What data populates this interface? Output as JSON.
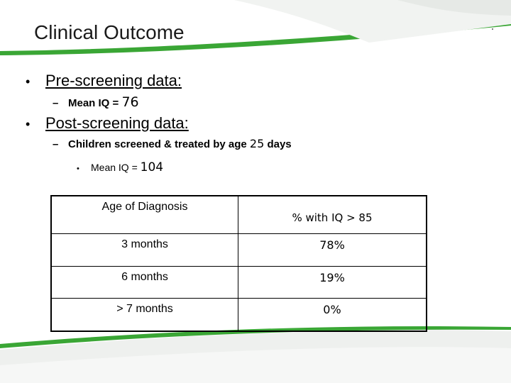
{
  "slide": {
    "title": "Clinical Outcome",
    "accent_color": "#3aa635",
    "bullets": [
      {
        "marker": "•",
        "label": "Pre-screening data:",
        "sub": [
          {
            "marker": "–",
            "prefix": "Mean IQ = ",
            "value": "76"
          }
        ]
      },
      {
        "marker": "•",
        "label": "Post-screening data:",
        "sub": [
          {
            "marker": "–",
            "prefix": "Children screened & treated by age ",
            "value": "25",
            "suffix": " days",
            "sub": [
              {
                "marker": "•",
                "prefix": "Mean IQ = ",
                "value": "104"
              }
            ]
          }
        ]
      }
    ],
    "table": {
      "headers": [
        "Age of Diagnosis",
        "% with IQ > 85"
      ],
      "rows": [
        [
          "3 months",
          "78%"
        ],
        [
          "6 months",
          "19%"
        ],
        [
          "> 7 months",
          "0%"
        ]
      ]
    }
  }
}
